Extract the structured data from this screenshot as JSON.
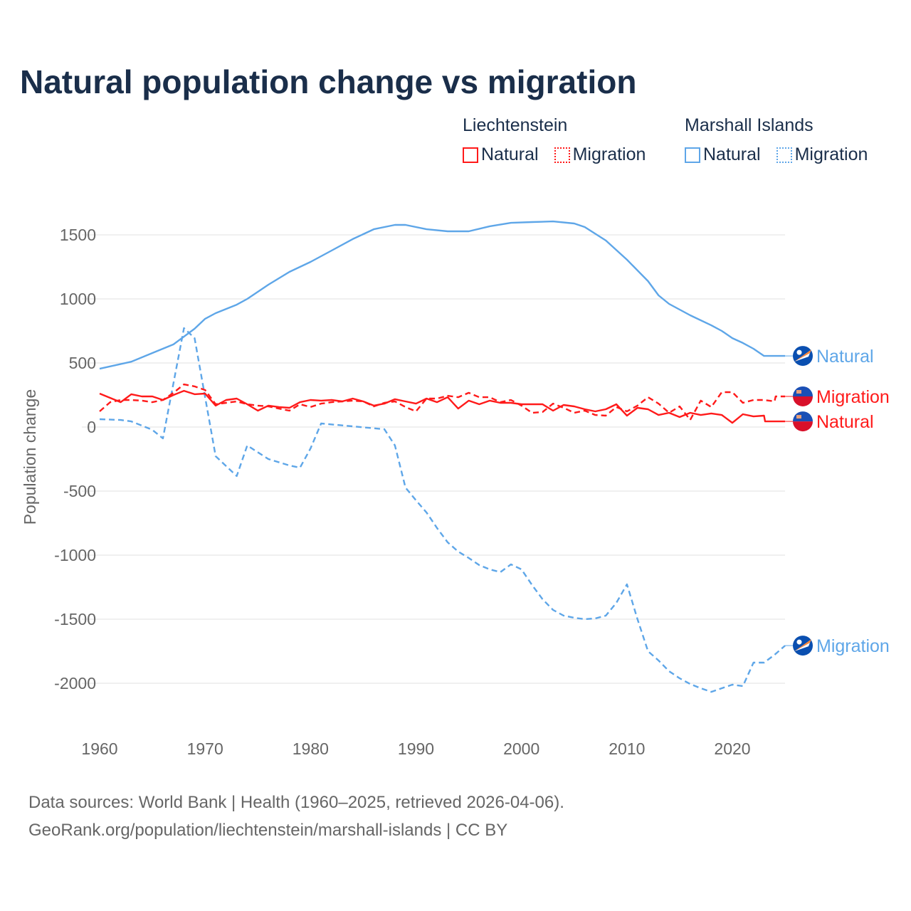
{
  "chart_data": {
    "type": "line",
    "title": "Natural population change vs migration",
    "xlabel": "",
    "ylabel": "Population change",
    "xlim": [
      1960,
      2025
    ],
    "ylim": [
      -2300,
      1700
    ],
    "x_ticks": [
      1960,
      1970,
      1980,
      1990,
      2000,
      2010,
      2020
    ],
    "y_ticks": [
      1500,
      1000,
      500,
      0,
      -500,
      -1000,
      -1500,
      -2000
    ],
    "grid": true,
    "legend_position": "top-right",
    "legend": [
      {
        "group": "Liechtenstein",
        "items": [
          "Natural",
          "Migration"
        ]
      },
      {
        "group": "Marshall Islands",
        "items": [
          "Natural",
          "Migration"
        ]
      }
    ],
    "series": [
      {
        "country": "Marshall Islands",
        "name": "Natural",
        "color": "#5ea6e8",
        "dash": false,
        "end_label": "Natural",
        "points": [
          [
            1960,
            455
          ],
          [
            1963,
            510
          ],
          [
            1965,
            578
          ],
          [
            1967,
            645
          ],
          [
            1969,
            767
          ],
          [
            1970,
            845
          ],
          [
            1971,
            889
          ],
          [
            1973,
            955
          ],
          [
            1974,
            1000
          ],
          [
            1976,
            1111
          ],
          [
            1978,
            1211
          ],
          [
            1980,
            1289
          ],
          [
            1982,
            1378
          ],
          [
            1984,
            1467
          ],
          [
            1986,
            1544
          ],
          [
            1988,
            1578
          ],
          [
            1989,
            1578
          ],
          [
            1991,
            1544
          ],
          [
            1993,
            1528
          ],
          [
            1995,
            1528
          ],
          [
            1997,
            1567
          ],
          [
            1999,
            1594
          ],
          [
            2001,
            1600
          ],
          [
            2003,
            1605
          ],
          [
            2005,
            1589
          ],
          [
            2006,
            1561
          ],
          [
            2008,
            1456
          ],
          [
            2010,
            1306
          ],
          [
            2012,
            1139
          ],
          [
            2013,
            1028
          ],
          [
            2014,
            961
          ],
          [
            2016,
            872
          ],
          [
            2018,
            794
          ],
          [
            2019,
            750
          ],
          [
            2020,
            694
          ],
          [
            2021,
            656
          ],
          [
            2022,
            611
          ],
          [
            2023,
            555
          ],
          [
            2025,
            555
          ]
        ]
      },
      {
        "country": "Marshall Islands",
        "name": "Migration",
        "color": "#5ea6e8",
        "dash": true,
        "end_label": "Migration",
        "points": [
          [
            1960,
            61
          ],
          [
            1962,
            55
          ],
          [
            1963,
            44
          ],
          [
            1964,
            11
          ],
          [
            1965,
            -22
          ],
          [
            1966,
            -89
          ],
          [
            1968,
            772
          ],
          [
            1969,
            694
          ],
          [
            1971,
            -228
          ],
          [
            1973,
            -383
          ],
          [
            1974,
            -144
          ],
          [
            1976,
            -250
          ],
          [
            1978,
            -300
          ],
          [
            1979,
            -317
          ],
          [
            1980,
            -167
          ],
          [
            1981,
            28
          ],
          [
            1987,
            -17
          ],
          [
            1988,
            -144
          ],
          [
            1989,
            -472
          ],
          [
            1990,
            -572
          ],
          [
            1991,
            -667
          ],
          [
            1992,
            -789
          ],
          [
            1993,
            -900
          ],
          [
            1994,
            -972
          ],
          [
            1995,
            -1022
          ],
          [
            1996,
            -1078
          ],
          [
            1997,
            -1111
          ],
          [
            1998,
            -1133
          ],
          [
            1999,
            -1072
          ],
          [
            2000,
            -1111
          ],
          [
            2001,
            -1233
          ],
          [
            2002,
            -1344
          ],
          [
            2003,
            -1428
          ],
          [
            2004,
            -1472
          ],
          [
            2005,
            -1489
          ],
          [
            2006,
            -1500
          ],
          [
            2007,
            -1494
          ],
          [
            2008,
            -1472
          ],
          [
            2009,
            -1372
          ],
          [
            2010,
            -1228
          ],
          [
            2011,
            -1500
          ],
          [
            2012,
            -1750
          ],
          [
            2013,
            -1822
          ],
          [
            2014,
            -1906
          ],
          [
            2015,
            -1961
          ],
          [
            2016,
            -2006
          ],
          [
            2017,
            -2039
          ],
          [
            2018,
            -2067
          ],
          [
            2019,
            -2039
          ],
          [
            2020,
            -2011
          ],
          [
            2021,
            -2022
          ],
          [
            2022,
            -1839
          ],
          [
            2023,
            -1839
          ],
          [
            2024,
            -1778
          ],
          [
            2025,
            -1706
          ]
        ]
      },
      {
        "country": "Liechtenstein",
        "name": "Natural",
        "color": "#ff1a1a",
        "dash": false,
        "end_label": "Natural",
        "points": [
          [
            1960,
            261
          ],
          [
            1962,
            194
          ],
          [
            1963,
            256
          ],
          [
            1964,
            239
          ],
          [
            1965,
            239
          ],
          [
            1966,
            211
          ],
          [
            1967,
            250
          ],
          [
            1968,
            283
          ],
          [
            1969,
            256
          ],
          [
            1970,
            261
          ],
          [
            1971,
            167
          ],
          [
            1972,
            211
          ],
          [
            1973,
            222
          ],
          [
            1974,
            178
          ],
          [
            1975,
            128
          ],
          [
            1976,
            167
          ],
          [
            1977,
            156
          ],
          [
            1978,
            150
          ],
          [
            1979,
            194
          ],
          [
            1980,
            211
          ],
          [
            1981,
            206
          ],
          [
            1982,
            211
          ],
          [
            1983,
            200
          ],
          [
            1984,
            222
          ],
          [
            1985,
            200
          ],
          [
            1986,
            167
          ],
          [
            1987,
            183
          ],
          [
            1988,
            217
          ],
          [
            1989,
            200
          ],
          [
            1990,
            183
          ],
          [
            1991,
            222
          ],
          [
            1992,
            194
          ],
          [
            1993,
            233
          ],
          [
            1994,
            144
          ],
          [
            1995,
            206
          ],
          [
            1996,
            178
          ],
          [
            1997,
            206
          ],
          [
            1998,
            189
          ],
          [
            1999,
            189
          ],
          [
            2000,
            178
          ],
          [
            2001,
            178
          ],
          [
            2002,
            178
          ],
          [
            2003,
            128
          ],
          [
            2004,
            172
          ],
          [
            2005,
            161
          ],
          [
            2006,
            139
          ],
          [
            2007,
            122
          ],
          [
            2008,
            139
          ],
          [
            2009,
            178
          ],
          [
            2010,
            89
          ],
          [
            2011,
            150
          ],
          [
            2012,
            139
          ],
          [
            2013,
            94
          ],
          [
            2014,
            111
          ],
          [
            2015,
            78
          ],
          [
            2016,
            111
          ],
          [
            2017,
            94
          ],
          [
            2018,
            106
          ],
          [
            2019,
            94
          ],
          [
            2020,
            33
          ],
          [
            2021,
            100
          ],
          [
            2022,
            83
          ],
          [
            2023,
            89
          ],
          [
            2023.1,
            44
          ],
          [
            2025,
            44
          ]
        ]
      },
      {
        "country": "Liechtenstein",
        "name": "Migration",
        "color": "#ff1a1a",
        "dash": true,
        "end_label": "Migration",
        "points": [
          [
            1960,
            122
          ],
          [
            1961,
            194
          ],
          [
            1962,
            211
          ],
          [
            1963,
            211
          ],
          [
            1964,
            206
          ],
          [
            1965,
            194
          ],
          [
            1966,
            211
          ],
          [
            1967,
            267
          ],
          [
            1968,
            333
          ],
          [
            1969,
            317
          ],
          [
            1970,
            289
          ],
          [
            1971,
            178
          ],
          [
            1972,
            189
          ],
          [
            1973,
            200
          ],
          [
            1974,
            178
          ],
          [
            1975,
            167
          ],
          [
            1976,
            161
          ],
          [
            1977,
            144
          ],
          [
            1978,
            128
          ],
          [
            1979,
            178
          ],
          [
            1980,
            156
          ],
          [
            1981,
            183
          ],
          [
            1982,
            194
          ],
          [
            1983,
            200
          ],
          [
            1984,
            206
          ],
          [
            1985,
            200
          ],
          [
            1986,
            161
          ],
          [
            1987,
            189
          ],
          [
            1988,
            200
          ],
          [
            1989,
            156
          ],
          [
            1990,
            122
          ],
          [
            1991,
            222
          ],
          [
            1992,
            222
          ],
          [
            1993,
            244
          ],
          [
            1994,
            233
          ],
          [
            1995,
            267
          ],
          [
            1996,
            233
          ],
          [
            1997,
            233
          ],
          [
            1998,
            194
          ],
          [
            1999,
            211
          ],
          [
            2000,
            167
          ],
          [
            2001,
            111
          ],
          [
            2002,
            117
          ],
          [
            2003,
            183
          ],
          [
            2004,
            150
          ],
          [
            2005,
            111
          ],
          [
            2006,
            128
          ],
          [
            2007,
            94
          ],
          [
            2008,
            89
          ],
          [
            2009,
            156
          ],
          [
            2010,
            122
          ],
          [
            2011,
            167
          ],
          [
            2012,
            233
          ],
          [
            2013,
            183
          ],
          [
            2014,
            111
          ],
          [
            2015,
            161
          ],
          [
            2016,
            56
          ],
          [
            2017,
            206
          ],
          [
            2018,
            156
          ],
          [
            2019,
            272
          ],
          [
            2020,
            272
          ],
          [
            2021,
            189
          ],
          [
            2022,
            211
          ],
          [
            2023,
            211
          ],
          [
            2024,
            200
          ],
          [
            2024.1,
            239
          ],
          [
            2025,
            239
          ]
        ]
      }
    ]
  },
  "source_line1": "Data sources: World Bank | Health (1960–2025, retrieved 2026-04-06).",
  "source_line2": "GeoRank.org/population/liechtenstein/marshall-islands | CC BY"
}
